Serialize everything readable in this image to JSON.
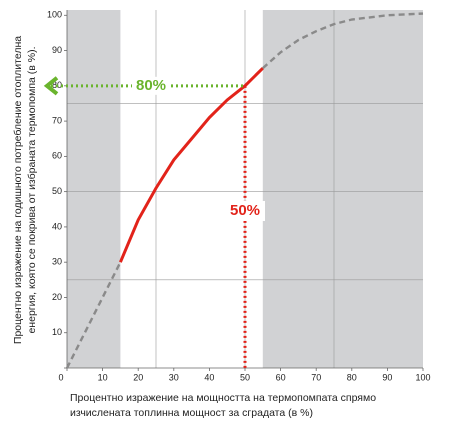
{
  "chart_data": {
    "type": "line",
    "x_label": [
      "Процентно изражение на мощността на термопомпата спрямо",
      "изчислената топлинна мощност за сградата (в %)"
    ],
    "y_label": [
      "Процентно изражение на годишното потребление отоплителна",
      "енергия, която се покрива от избраната термопомпа (в %)."
    ],
    "xlim": [
      0,
      100
    ],
    "ylim": [
      0,
      101.5
    ],
    "xticks": [
      0,
      10,
      20,
      30,
      40,
      50,
      60,
      70,
      80,
      90,
      100
    ],
    "yticks": [
      0,
      10,
      20,
      30,
      40,
      50,
      60,
      70,
      80,
      90,
      100
    ],
    "grid_x": [
      25,
      50,
      75
    ],
    "grid_y": [
      25,
      50,
      75
    ],
    "shaded": [
      [
        0,
        15
      ],
      [
        55,
        100
      ]
    ],
    "shade_color": "#d1d2d4",
    "series": [
      {
        "color": "#8a8a8a",
        "dashed": true,
        "x": [
          0,
          15
        ],
        "values": [
          0,
          30
        ]
      },
      {
        "color": "#e2231a",
        "dashed": false,
        "x": [
          15,
          20,
          25,
          30,
          35,
          40,
          45,
          50,
          55
        ],
        "values": [
          30,
          42,
          51,
          59,
          65,
          71,
          76,
          80,
          85
        ]
      },
      {
        "color": "#8a8a8a",
        "dashed": true,
        "x": [
          55,
          60,
          65,
          70,
          75,
          80,
          90,
          100
        ],
        "values": [
          85,
          89.5,
          93,
          95.5,
          97.5,
          98.8,
          100,
          100.5
        ]
      }
    ],
    "annotations": [
      {
        "text": "80%",
        "color": "#6ab42d",
        "axis": "y",
        "value": 80,
        "from": 50
      },
      {
        "text": "50%",
        "color": "#e2231a",
        "axis": "x",
        "value": 50,
        "from": 80
      }
    ]
  }
}
